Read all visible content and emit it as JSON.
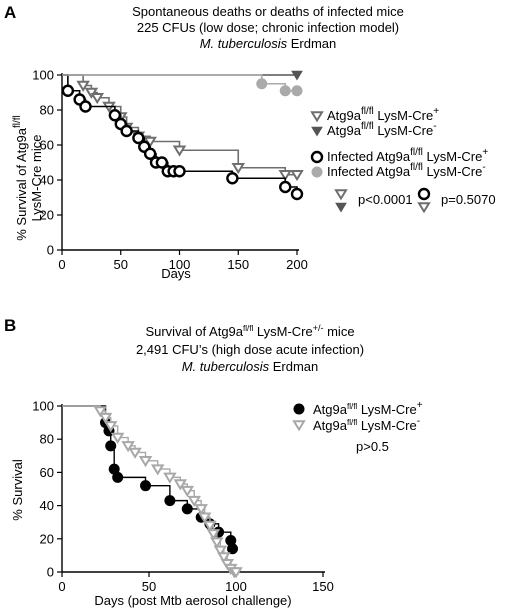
{
  "chart_data": [
    {
      "panel": "A",
      "type": "line",
      "title_lines": [
        "Spontaneous deaths or deaths of infected mice",
        "225 CFUs (low dose; chronic infection model)"
      ],
      "title_italic": "M. tuberculosis",
      "title_strain": " Erdman",
      "ylabel_line1": "% Survival of Atg9a",
      "ylabel_sup": "fl/fl",
      "ylabel_line2": "LysM-Cre mice",
      "xlabel": "Days",
      "xlim": [
        0,
        200
      ],
      "ylim": [
        0,
        100
      ],
      "xticks": [
        0,
        50,
        100,
        150,
        200
      ],
      "yticks": [
        0,
        20,
        40,
        60,
        80,
        100
      ],
      "series": [
        {
          "name": "Atg9a fl/fl LysM-Cre+",
          "legend_base": "Atg9a",
          "legend_sup1": "fl/fl",
          "legend_mid": " LysM-Cre",
          "legend_sup2": "+",
          "color": "#6e6e6e",
          "marker": "triangle-down-open",
          "x": [
            0,
            18,
            25,
            30,
            40,
            50,
            55,
            65,
            75,
            100,
            150,
            190,
            200
          ],
          "y": [
            100,
            94,
            90,
            87,
            82,
            76,
            70,
            65,
            62,
            57,
            47,
            43,
            43
          ]
        },
        {
          "name": "Atg9a fl/fl LysM-Cre-",
          "legend_base": "Atg9a",
          "legend_sup1": "fl/fl",
          "legend_mid": " LysM-Cre",
          "legend_sup2": "-",
          "color": "#555555",
          "marker": "triangle-down-filled",
          "x": [
            0,
            200
          ],
          "y": [
            100,
            100
          ]
        },
        {
          "name": "Infected Atg9a fl/fl LysM-Cre+",
          "legend_base": "Infected Atg9a",
          "legend_sup1": "fl/fl",
          "legend_mid": " LysM-Cre",
          "legend_sup2": "+",
          "color": "#000000",
          "marker": "circle-open",
          "x": [
            0,
            5,
            15,
            20,
            45,
            50,
            55,
            65,
            70,
            75,
            80,
            85,
            90,
            95,
            100,
            145,
            190,
            200
          ],
          "y": [
            100,
            91,
            86,
            82,
            77,
            72,
            68,
            64,
            59,
            55,
            50,
            50,
            45,
            45,
            45,
            41,
            36,
            32
          ]
        },
        {
          "name": "Infected Atg9a fl/fl LysM-Cre-",
          "legend_base": "Infected Atg9a",
          "legend_sup1": "fl/fl",
          "legend_mid": " LysM-Cre",
          "legend_sup2": "-",
          "color": "#aaaaaa",
          "marker": "circle-filled",
          "x": [
            0,
            170,
            190,
            200
          ],
          "y": [
            100,
            95,
            91,
            91
          ]
        }
      ],
      "stats": [
        {
          "text": "p<0.0001"
        },
        {
          "text": "p=0.5070"
        }
      ]
    },
    {
      "panel": "B",
      "type": "line",
      "title_lines": [
        "Survival of Atg9a",
        "2,491 CFU’s  (high dose acute infection)"
      ],
      "title_sup": "fl/fl",
      "title_suffix": " LysM-Cre",
      "title_sup2": "+/-",
      "title_tail": " mice",
      "title_italic": "M. tuberculosis",
      "title_strain": " Erdman",
      "ylabel": "% Survival",
      "xlabel": "Days (post Mtb aerosol challenge)",
      "xlim": [
        0,
        150
      ],
      "ylim": [
        0,
        100
      ],
      "xticks": [
        0,
        50,
        100,
        150
      ],
      "yticks": [
        0,
        20,
        40,
        60,
        80,
        100
      ],
      "series": [
        {
          "name": "Atg9a fl/fl LysM-Cre+",
          "legend_base": "Atg9a",
          "legend_sup1": "fl/fl",
          "legend_mid": " LysM-Cre",
          "legend_sup2": "+",
          "color": "#000000",
          "marker": "circle-filled",
          "x": [
            0,
            25,
            27,
            28,
            30,
            32,
            48,
            62,
            72,
            80,
            85,
            90,
            97,
            98,
            100
          ],
          "y": [
            100,
            90,
            85,
            76,
            62,
            57,
            52,
            43,
            38,
            33,
            29,
            24,
            19,
            14,
            14
          ],
          "sizes": [
            0,
            1,
            1,
            1,
            1,
            1,
            1,
            1,
            1,
            1,
            1,
            1,
            1,
            1,
            0
          ]
        },
        {
          "name": "Atg9a fl/fl LysM-Cre-",
          "legend_base": "Atg9a",
          "legend_sup1": "fl/fl",
          "legend_mid": " LysM-Cre",
          "legend_sup2": "-",
          "color": "#a8a8a8",
          "marker": "triangle-down-open",
          "x": [
            0,
            22,
            25,
            28,
            32,
            38,
            42,
            48,
            55,
            62,
            68,
            72,
            76,
            80,
            82,
            85,
            87,
            89,
            91,
            93,
            95,
            97,
            99,
            100
          ],
          "y": [
            100,
            97,
            93,
            88,
            81,
            76,
            72,
            67,
            62,
            57,
            53,
            49,
            43,
            38,
            33,
            28,
            23,
            18,
            13,
            9,
            5,
            2,
            0,
            0
          ]
        }
      ],
      "stats": [
        {
          "text": "p>0.5"
        }
      ]
    }
  ]
}
